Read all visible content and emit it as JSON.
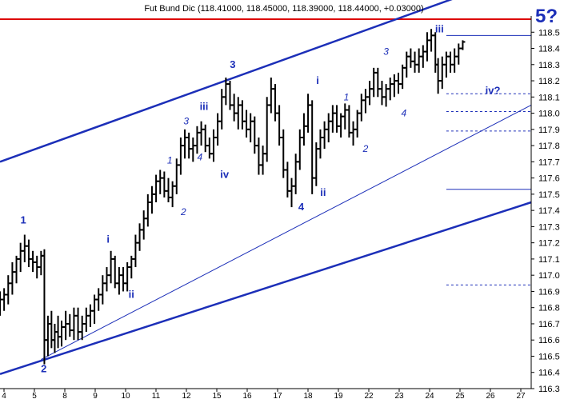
{
  "chart_data": {
    "type": "ohlc",
    "title": "Fut Bund Dic (118.41000, 118.45000, 118.39000, 118.44000, +0.03000)",
    "corner_label": "5?",
    "x_tick_labels": [
      "4",
      "5",
      "8",
      "9",
      "10",
      "11",
      "12",
      "15",
      "16",
      "17",
      "18",
      "19",
      "22",
      "23",
      "24",
      "25",
      "26",
      "27"
    ],
    "y_tick_labels": [
      "116.3",
      "116.4",
      "116.5",
      "116.6",
      "116.7",
      "116.8",
      "116.9",
      "117.0",
      "117.1",
      "117.2",
      "117.3",
      "117.4",
      "117.5",
      "117.6",
      "117.7",
      "117.8",
      "117.9",
      "118.0",
      "118.1",
      "118.2",
      "118.3",
      "118.4",
      "118.5"
    ],
    "ylim": [
      116.3,
      118.6
    ],
    "xlim": [
      0,
      19.4
    ],
    "colors": {
      "bars": "#000000",
      "annotation": "#1c2fb8",
      "resistance": "#dd0000"
    },
    "horizontal_lines": [
      {
        "value": 118.58,
        "color": "red",
        "style": "solid"
      },
      {
        "value": 118.48,
        "from": 16.3,
        "style": "solid"
      },
      {
        "value": 118.12,
        "from": 16.3,
        "style": "dashed"
      },
      {
        "value": 118.01,
        "from": 16.3,
        "style": "dashed"
      },
      {
        "value": 117.89,
        "from": 16.3,
        "style": "dashed"
      },
      {
        "value": 117.53,
        "from": 16.3,
        "style": "solid"
      },
      {
        "value": 116.94,
        "from": 16.3,
        "style": "dashed"
      }
    ],
    "trend_lines": [
      {
        "x1": 0,
        "y1": 117.7,
        "x2": 19.4,
        "y2": 118.88,
        "weight": "thick"
      },
      {
        "x1": 0,
        "y1": 116.39,
        "x2": 19.4,
        "y2": 117.45,
        "weight": "thick"
      },
      {
        "x1": 1.5,
        "y1": 116.48,
        "x2": 19.4,
        "y2": 118.05,
        "weight": "thin"
      }
    ],
    "series": [
      {
        "x": 0.0,
        "o": 116.8,
        "h": 116.9,
        "l": 116.75,
        "c": 116.85
      },
      {
        "x": 0.15,
        "o": 116.85,
        "h": 116.92,
        "l": 116.78,
        "c": 116.88
      },
      {
        "x": 0.3,
        "o": 116.88,
        "h": 117.0,
        "l": 116.82,
        "c": 116.95
      },
      {
        "x": 0.45,
        "o": 116.95,
        "h": 117.08,
        "l": 116.88,
        "c": 117.02
      },
      {
        "x": 0.6,
        "o": 117.02,
        "h": 117.12,
        "l": 116.95,
        "c": 117.1
      },
      {
        "x": 0.75,
        "o": 117.1,
        "h": 117.2,
        "l": 117.02,
        "c": 117.15
      },
      {
        "x": 0.9,
        "o": 117.15,
        "h": 117.25,
        "l": 117.08,
        "c": 117.18
      },
      {
        "x": 1.05,
        "o": 117.18,
        "h": 117.22,
        "l": 117.05,
        "c": 117.1
      },
      {
        "x": 1.2,
        "o": 117.1,
        "h": 117.15,
        "l": 117.02,
        "c": 117.08
      },
      {
        "x": 1.35,
        "o": 117.08,
        "h": 117.12,
        "l": 116.98,
        "c": 117.05
      },
      {
        "x": 1.5,
        "o": 117.05,
        "h": 117.15,
        "l": 117.0,
        "c": 117.12
      },
      {
        "x": 1.62,
        "o": 117.12,
        "h": 117.16,
        "l": 116.45,
        "c": 116.6
      },
      {
        "x": 1.75,
        "o": 116.6,
        "h": 116.75,
        "l": 116.5,
        "c": 116.7
      },
      {
        "x": 1.88,
        "o": 116.7,
        "h": 116.78,
        "l": 116.55,
        "c": 116.6
      },
      {
        "x": 2.0,
        "o": 116.6,
        "h": 116.7,
        "l": 116.52,
        "c": 116.65
      },
      {
        "x": 2.12,
        "o": 116.65,
        "h": 116.75,
        "l": 116.55,
        "c": 116.62
      },
      {
        "x": 2.25,
        "o": 116.62,
        "h": 116.72,
        "l": 116.56,
        "c": 116.68
      },
      {
        "x": 2.4,
        "o": 116.68,
        "h": 116.78,
        "l": 116.6,
        "c": 116.7
      },
      {
        "x": 2.55,
        "o": 116.7,
        "h": 116.76,
        "l": 116.62,
        "c": 116.66
      },
      {
        "x": 2.7,
        "o": 116.66,
        "h": 116.8,
        "l": 116.6,
        "c": 116.75
      },
      {
        "x": 2.85,
        "o": 116.75,
        "h": 116.8,
        "l": 116.6,
        "c": 116.65
      },
      {
        "x": 3.0,
        "o": 116.65,
        "h": 116.75,
        "l": 116.6,
        "c": 116.7
      },
      {
        "x": 3.15,
        "o": 116.7,
        "h": 116.8,
        "l": 116.65,
        "c": 116.75
      },
      {
        "x": 3.3,
        "o": 116.75,
        "h": 116.82,
        "l": 116.68,
        "c": 116.78
      },
      {
        "x": 3.45,
        "o": 116.78,
        "h": 116.88,
        "l": 116.7,
        "c": 116.85
      },
      {
        "x": 3.6,
        "o": 116.85,
        "h": 116.92,
        "l": 116.78,
        "c": 116.88
      },
      {
        "x": 3.75,
        "o": 116.88,
        "h": 117.0,
        "l": 116.82,
        "c": 116.95
      },
      {
        "x": 3.9,
        "o": 116.95,
        "h": 117.05,
        "l": 116.9,
        "c": 117.0
      },
      {
        "x": 4.05,
        "o": 117.0,
        "h": 117.15,
        "l": 116.95,
        "c": 117.1
      },
      {
        "x": 4.2,
        "o": 117.1,
        "h": 117.12,
        "l": 116.92,
        "c": 116.95
      },
      {
        "x": 4.35,
        "o": 116.95,
        "h": 117.05,
        "l": 116.88,
        "c": 117.0
      },
      {
        "x": 4.5,
        "o": 117.0,
        "h": 117.05,
        "l": 116.9,
        "c": 116.95
      },
      {
        "x": 4.65,
        "o": 116.95,
        "h": 117.08,
        "l": 116.9,
        "c": 117.05
      },
      {
        "x": 4.8,
        "o": 117.05,
        "h": 117.12,
        "l": 116.98,
        "c": 117.1
      },
      {
        "x": 4.95,
        "o": 117.1,
        "h": 117.25,
        "l": 117.05,
        "c": 117.2
      },
      {
        "x": 5.1,
        "o": 117.2,
        "h": 117.32,
        "l": 117.15,
        "c": 117.28
      },
      {
        "x": 5.25,
        "o": 117.28,
        "h": 117.4,
        "l": 117.22,
        "c": 117.35
      },
      {
        "x": 5.4,
        "o": 117.35,
        "h": 117.5,
        "l": 117.3,
        "c": 117.45
      },
      {
        "x": 5.55,
        "o": 117.45,
        "h": 117.55,
        "l": 117.38,
        "c": 117.5
      },
      {
        "x": 5.7,
        "o": 117.5,
        "h": 117.62,
        "l": 117.45,
        "c": 117.58
      },
      {
        "x": 5.85,
        "o": 117.58,
        "h": 117.65,
        "l": 117.5,
        "c": 117.6
      },
      {
        "x": 6.0,
        "o": 117.6,
        "h": 117.64,
        "l": 117.48,
        "c": 117.52
      },
      {
        "x": 6.15,
        "o": 117.52,
        "h": 117.6,
        "l": 117.45,
        "c": 117.48
      },
      {
        "x": 6.3,
        "o": 117.48,
        "h": 117.58,
        "l": 117.42,
        "c": 117.55
      },
      {
        "x": 6.45,
        "o": 117.55,
        "h": 117.72,
        "l": 117.5,
        "c": 117.68
      },
      {
        "x": 6.6,
        "o": 117.68,
        "h": 117.85,
        "l": 117.62,
        "c": 117.8
      },
      {
        "x": 6.75,
        "o": 117.8,
        "h": 117.9,
        "l": 117.72,
        "c": 117.85
      },
      {
        "x": 6.9,
        "o": 117.85,
        "h": 117.88,
        "l": 117.72,
        "c": 117.78
      },
      {
        "x": 7.05,
        "o": 117.78,
        "h": 117.85,
        "l": 117.7,
        "c": 117.8
      },
      {
        "x": 7.2,
        "o": 117.8,
        "h": 117.92,
        "l": 117.75,
        "c": 117.88
      },
      {
        "x": 7.35,
        "o": 117.88,
        "h": 117.95,
        "l": 117.8,
        "c": 117.9
      },
      {
        "x": 7.5,
        "o": 117.9,
        "h": 117.93,
        "l": 117.76,
        "c": 117.8
      },
      {
        "x": 7.65,
        "o": 117.8,
        "h": 117.85,
        "l": 117.72,
        "c": 117.75
      },
      {
        "x": 7.8,
        "o": 117.75,
        "h": 117.9,
        "l": 117.7,
        "c": 117.85
      },
      {
        "x": 7.95,
        "o": 117.85,
        "h": 118.0,
        "l": 117.8,
        "c": 117.95
      },
      {
        "x": 8.1,
        "o": 117.95,
        "h": 118.15,
        "l": 117.9,
        "c": 118.1
      },
      {
        "x": 8.25,
        "o": 118.1,
        "h": 118.22,
        "l": 118.05,
        "c": 118.18
      },
      {
        "x": 8.4,
        "o": 118.18,
        "h": 118.2,
        "l": 118.02,
        "c": 118.05
      },
      {
        "x": 8.55,
        "o": 118.05,
        "h": 118.12,
        "l": 117.95,
        "c": 118.0
      },
      {
        "x": 8.7,
        "o": 118.0,
        "h": 118.1,
        "l": 117.9,
        "c": 118.05
      },
      {
        "x": 8.85,
        "o": 118.05,
        "h": 118.08,
        "l": 117.9,
        "c": 117.95
      },
      {
        "x": 9.0,
        "o": 117.95,
        "h": 118.02,
        "l": 117.85,
        "c": 117.9
      },
      {
        "x": 9.15,
        "o": 117.9,
        "h": 118.0,
        "l": 117.82,
        "c": 117.95
      },
      {
        "x": 9.3,
        "o": 117.95,
        "h": 117.98,
        "l": 117.75,
        "c": 117.8
      },
      {
        "x": 9.45,
        "o": 117.8,
        "h": 117.85,
        "l": 117.62,
        "c": 117.68
      },
      {
        "x": 9.6,
        "o": 117.68,
        "h": 117.8,
        "l": 117.62,
        "c": 117.75
      },
      {
        "x": 9.75,
        "o": 117.75,
        "h": 118.1,
        "l": 117.7,
        "c": 118.05
      },
      {
        "x": 9.9,
        "o": 118.05,
        "h": 118.22,
        "l": 118.0,
        "c": 118.15
      },
      {
        "x": 10.05,
        "o": 118.15,
        "h": 118.18,
        "l": 117.95,
        "c": 118.0
      },
      {
        "x": 10.2,
        "o": 118.0,
        "h": 118.05,
        "l": 117.8,
        "c": 117.85
      },
      {
        "x": 10.35,
        "o": 117.85,
        "h": 117.9,
        "l": 117.6,
        "c": 117.65
      },
      {
        "x": 10.5,
        "o": 117.65,
        "h": 117.7,
        "l": 117.48,
        "c": 117.52
      },
      {
        "x": 10.65,
        "o": 117.52,
        "h": 117.6,
        "l": 117.42,
        "c": 117.55
      },
      {
        "x": 10.8,
        "o": 117.55,
        "h": 117.75,
        "l": 117.5,
        "c": 117.7
      },
      {
        "x": 10.95,
        "o": 117.7,
        "h": 117.9,
        "l": 117.65,
        "c": 117.85
      },
      {
        "x": 11.1,
        "o": 117.85,
        "h": 118.0,
        "l": 117.8,
        "c": 117.92
      },
      {
        "x": 11.25,
        "o": 117.92,
        "h": 118.12,
        "l": 117.88,
        "c": 118.05
      },
      {
        "x": 11.4,
        "o": 118.05,
        "h": 118.08,
        "l": 117.5,
        "c": 117.6
      },
      {
        "x": 11.55,
        "o": 117.6,
        "h": 117.82,
        "l": 117.55,
        "c": 117.78
      },
      {
        "x": 11.7,
        "o": 117.78,
        "h": 117.9,
        "l": 117.72,
        "c": 117.85
      },
      {
        "x": 11.85,
        "o": 117.85,
        "h": 117.95,
        "l": 117.78,
        "c": 117.9
      },
      {
        "x": 12.0,
        "o": 117.9,
        "h": 118.0,
        "l": 117.82,
        "c": 117.95
      },
      {
        "x": 12.15,
        "o": 117.95,
        "h": 118.05,
        "l": 117.88,
        "c": 118.0
      },
      {
        "x": 12.3,
        "o": 118.0,
        "h": 118.05,
        "l": 117.88,
        "c": 117.92
      },
      {
        "x": 12.45,
        "o": 117.92,
        "h": 118.0,
        "l": 117.85,
        "c": 117.98
      },
      {
        "x": 12.6,
        "o": 117.98,
        "h": 118.06,
        "l": 117.9,
        "c": 118.02
      },
      {
        "x": 12.75,
        "o": 118.02,
        "h": 118.05,
        "l": 117.85,
        "c": 117.88
      },
      {
        "x": 12.9,
        "o": 117.88,
        "h": 117.95,
        "l": 117.8,
        "c": 117.9
      },
      {
        "x": 13.05,
        "o": 117.9,
        "h": 118.02,
        "l": 117.85,
        "c": 118.0
      },
      {
        "x": 13.2,
        "o": 118.0,
        "h": 118.12,
        "l": 117.95,
        "c": 118.08
      },
      {
        "x": 13.35,
        "o": 118.08,
        "h": 118.15,
        "l": 118.0,
        "c": 118.1
      },
      {
        "x": 13.5,
        "o": 118.1,
        "h": 118.2,
        "l": 118.05,
        "c": 118.15
      },
      {
        "x": 13.65,
        "o": 118.15,
        "h": 118.28,
        "l": 118.1,
        "c": 118.25
      },
      {
        "x": 13.8,
        "o": 118.25,
        "h": 118.28,
        "l": 118.1,
        "c": 118.15
      },
      {
        "x": 13.95,
        "o": 118.15,
        "h": 118.2,
        "l": 118.05,
        "c": 118.1
      },
      {
        "x": 14.1,
        "o": 118.1,
        "h": 118.18,
        "l": 118.04,
        "c": 118.15
      },
      {
        "x": 14.25,
        "o": 118.15,
        "h": 118.22,
        "l": 118.08,
        "c": 118.18
      },
      {
        "x": 14.4,
        "o": 118.18,
        "h": 118.24,
        "l": 118.1,
        "c": 118.2
      },
      {
        "x": 14.55,
        "o": 118.2,
        "h": 118.25,
        "l": 118.12,
        "c": 118.18
      },
      {
        "x": 14.7,
        "o": 118.18,
        "h": 118.3,
        "l": 118.15,
        "c": 118.28
      },
      {
        "x": 14.85,
        "o": 118.28,
        "h": 118.38,
        "l": 118.22,
        "c": 118.35
      },
      {
        "x": 15.0,
        "o": 118.35,
        "h": 118.4,
        "l": 118.28,
        "c": 118.32
      },
      {
        "x": 15.15,
        "o": 118.32,
        "h": 118.38,
        "l": 118.25,
        "c": 118.3
      },
      {
        "x": 15.3,
        "o": 118.3,
        "h": 118.4,
        "l": 118.25,
        "c": 118.35
      },
      {
        "x": 15.45,
        "o": 118.35,
        "h": 118.42,
        "l": 118.28,
        "c": 118.38
      },
      {
        "x": 15.6,
        "o": 118.38,
        "h": 118.5,
        "l": 118.32,
        "c": 118.45
      },
      {
        "x": 15.75,
        "o": 118.45,
        "h": 118.52,
        "l": 118.38,
        "c": 118.48
      },
      {
        "x": 15.9,
        "o": 118.48,
        "h": 118.5,
        "l": 118.25,
        "c": 118.3
      },
      {
        "x": 16.0,
        "o": 118.3,
        "h": 118.34,
        "l": 118.12,
        "c": 118.2
      },
      {
        "x": 16.15,
        "o": 118.2,
        "h": 118.35,
        "l": 118.15,
        "c": 118.3
      },
      {
        "x": 16.3,
        "o": 118.3,
        "h": 118.38,
        "l": 118.22,
        "c": 118.35
      },
      {
        "x": 16.45,
        "o": 118.35,
        "h": 118.38,
        "l": 118.25,
        "c": 118.3
      },
      {
        "x": 16.6,
        "o": 118.3,
        "h": 118.4,
        "l": 118.25,
        "c": 118.35
      },
      {
        "x": 16.75,
        "o": 118.35,
        "h": 118.43,
        "l": 118.3,
        "c": 118.4
      },
      {
        "x": 16.9,
        "o": 118.4,
        "h": 118.45,
        "l": 118.39,
        "c": 118.44
      }
    ],
    "annotations": [
      {
        "text": "1",
        "x": 0.85,
        "y": 117.32,
        "style": "bold"
      },
      {
        "text": "2",
        "x": 1.6,
        "y": 116.4,
        "style": "bold"
      },
      {
        "text": "i",
        "x": 3.95,
        "y": 117.2,
        "style": "bold"
      },
      {
        "text": "ii",
        "x": 4.8,
        "y": 116.86,
        "style": "bold"
      },
      {
        "text": "1",
        "x": 6.2,
        "y": 117.69,
        "style": "italic"
      },
      {
        "text": "2",
        "x": 6.7,
        "y": 117.37,
        "style": "italic"
      },
      {
        "text": "3",
        "x": 6.8,
        "y": 117.93,
        "style": "italic"
      },
      {
        "text": "4",
        "x": 7.3,
        "y": 117.71,
        "style": "italic"
      },
      {
        "text": "iii",
        "x": 7.45,
        "y": 118.02,
        "style": "bold"
      },
      {
        "text": "iv",
        "x": 8.2,
        "y": 117.6,
        "style": "bold"
      },
      {
        "text": "3",
        "x": 8.5,
        "y": 118.28,
        "style": "bold"
      },
      {
        "text": "4",
        "x": 11.0,
        "y": 117.4,
        "style": "bold"
      },
      {
        "text": "i",
        "x": 11.6,
        "y": 118.18,
        "style": "bold"
      },
      {
        "text": "ii",
        "x": 11.8,
        "y": 117.49,
        "style": "bold"
      },
      {
        "text": "1",
        "x": 12.65,
        "y": 118.08,
        "style": "italic"
      },
      {
        "text": "2",
        "x": 13.35,
        "y": 117.76,
        "style": "italic"
      },
      {
        "text": "3",
        "x": 14.1,
        "y": 118.36,
        "style": "italic"
      },
      {
        "text": "4",
        "x": 14.75,
        "y": 117.98,
        "style": "italic"
      },
      {
        "text": "iii",
        "x": 16.05,
        "y": 118.5,
        "style": "bold"
      },
      {
        "text": "iv?",
        "x": 18.0,
        "y": 118.12,
        "style": "bold"
      }
    ]
  }
}
